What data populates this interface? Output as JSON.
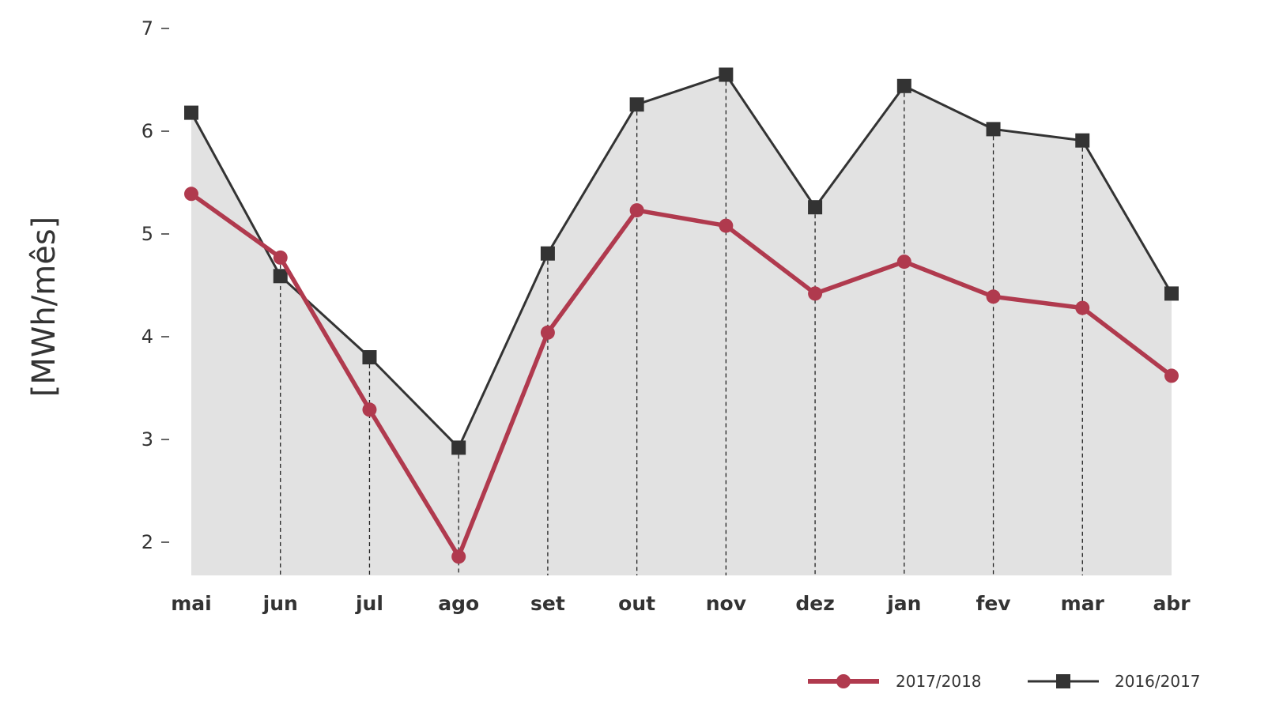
{
  "chart_data": {
    "type": "line",
    "title": "",
    "xlabel": "",
    "ylabel": "[MWh/mês]",
    "categories": [
      "mai",
      "jun",
      "jul",
      "ago",
      "set",
      "out",
      "nov",
      "dez",
      "jan",
      "fev",
      "mar",
      "abr"
    ],
    "ylim": [
      1.7,
      7
    ],
    "yticks": [
      "2",
      "3",
      "4",
      "5",
      "6",
      "7"
    ],
    "grid": false,
    "legend_position": "bottom-right",
    "series": [
      {
        "name": "2017/2018",
        "color": "#b03a4e",
        "marker": "circle",
        "values": [
          5.39,
          4.77,
          3.29,
          1.86,
          4.04,
          5.23,
          5.08,
          4.42,
          4.73,
          4.39,
          4.28,
          3.62
        ]
      },
      {
        "name": "2016/2017",
        "color": "#333333",
        "marker": "square",
        "fill": "#e2e2e2",
        "values": [
          6.18,
          4.59,
          3.8,
          2.92,
          4.81,
          6.26,
          6.55,
          5.26,
          6.44,
          6.02,
          5.91,
          4.42
        ]
      }
    ]
  }
}
